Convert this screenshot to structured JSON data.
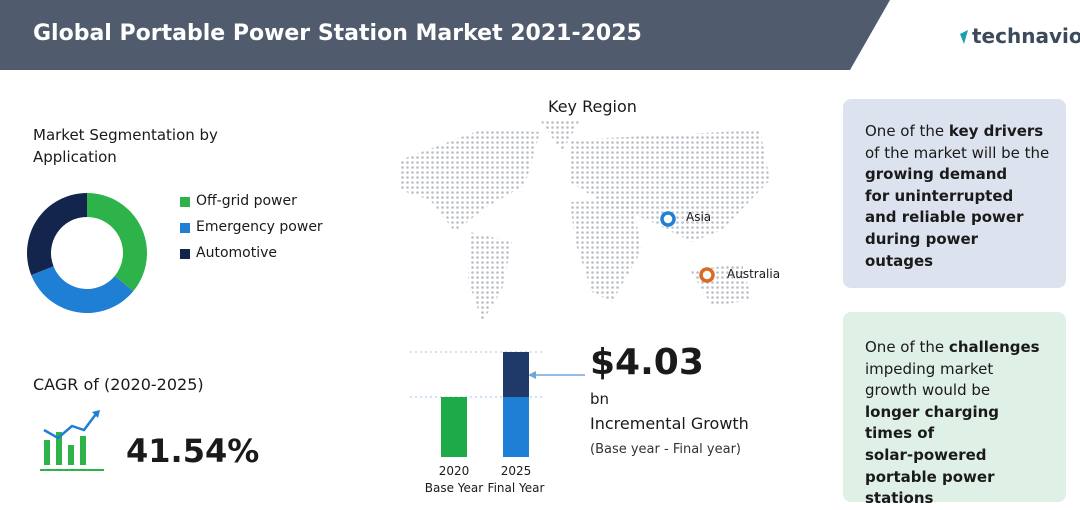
{
  "header": {
    "title": "Global Portable Power Station Market 2021-2025",
    "brand": "technavio"
  },
  "segmentation": {
    "title_lines": [
      "Market Segmentation by",
      "Application"
    ],
    "chart_data": {
      "type": "donut",
      "categories": [
        "Off-grid power",
        "Emergency power",
        "Automotive"
      ],
      "values": [
        36,
        33,
        31
      ],
      "colors": [
        "#2db34a",
        "#1f7fd4",
        "#14254d"
      ]
    }
  },
  "cagr": {
    "label": "CAGR of (2020-2025)",
    "value": "41.54%"
  },
  "region": {
    "title": "Key Region",
    "markers": [
      "Asia",
      "Australia"
    ]
  },
  "growth": {
    "chart_data": {
      "type": "stacked-bar",
      "categories": [
        [
          "2020",
          "Base Year"
        ],
        [
          "2025",
          "Final Year"
        ]
      ],
      "series": [
        {
          "name": "base",
          "color": "#1faa4a",
          "values": [
            60,
            60
          ]
        },
        {
          "name": "increment",
          "color": "#1f3a68",
          "values": [
            null,
            45
          ]
        }
      ]
    },
    "amount": "$4.03",
    "unit": "bn",
    "label": "Incremental Growth",
    "note": "(Base year - Final year)"
  },
  "drivers": {
    "lines": [
      [
        {
          "text": "One of the "
        },
        {
          "text": "key drivers",
          "bold": true
        }
      ],
      [
        {
          "text": "of the market will be the"
        }
      ],
      [
        {
          "text": "growing demand",
          "bold": true
        }
      ],
      [
        {
          "text": "for uninterrupted",
          "bold": true
        }
      ],
      [
        {
          "text": "and reliable power",
          "bold": true
        }
      ],
      [
        {
          "text": "during power",
          "bold": true
        }
      ],
      [
        {
          "text": "outages",
          "bold": true
        }
      ]
    ]
  },
  "challenges": {
    "lines": [
      [
        {
          "text": "One of the "
        },
        {
          "text": "challenges",
          "bold": true
        }
      ],
      [
        {
          "text": "impeding market"
        }
      ],
      [
        {
          "text": "growth would be"
        }
      ],
      [
        {
          "text": "longer charging",
          "bold": true
        }
      ],
      [
        {
          "text": "times of",
          "bold": true
        }
      ],
      [
        {
          "text": "solar-powered",
          "bold": true
        }
      ],
      [
        {
          "text": "portable power",
          "bold": true
        }
      ],
      [
        {
          "text": "stations",
          "bold": true
        }
      ]
    ]
  }
}
